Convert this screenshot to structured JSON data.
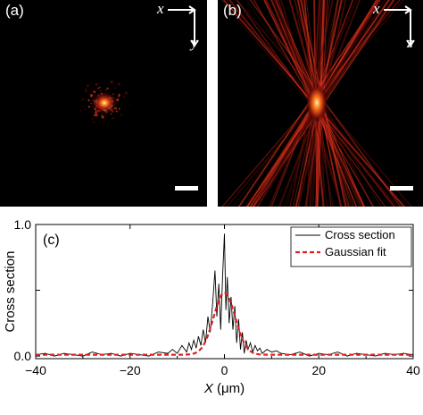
{
  "panel_a": {
    "tag": "(a)",
    "axis_h": "x",
    "axis_v": "y"
  },
  "panel_b": {
    "tag": "(b)",
    "axis_h": "x",
    "axis_v": "z"
  },
  "colors": {
    "background": "#000000",
    "speckle_hot": "#ffe9b0",
    "speckle_mid": "#e0301a",
    "speckle_dim": "#6a0e08",
    "cross_section_line": "#000000",
    "gaussian_line": "#e02020"
  },
  "chart_data": {
    "type": "line",
    "panel_label": "(c)",
    "xlabel": "X (μm)",
    "ylabel": "Cross section",
    "xlim": [
      -40,
      40
    ],
    "ylim": [
      -0.02,
      1.0
    ],
    "xticks": [
      -40,
      -20,
      0,
      20,
      40
    ],
    "yticks": [
      0.0,
      0.5,
      1.0
    ],
    "ytick_labels": [
      "0.0",
      "",
      "1.0"
    ],
    "legend_placement": "top-right",
    "series": [
      {
        "name": "Cross section",
        "style": "solid",
        "x": [
          -40,
          -38,
          -36,
          -34,
          -32,
          -30,
          -28,
          -26,
          -24,
          -22,
          -20,
          -18,
          -16,
          -14,
          -12,
          -11,
          -10,
          -9,
          -8,
          -7.5,
          -7,
          -6.5,
          -6,
          -5.5,
          -5,
          -4.5,
          -4,
          -3.5,
          -3,
          -2.5,
          -2,
          -1.6,
          -1.2,
          -0.8,
          -0.4,
          0,
          0.3,
          0.6,
          1,
          1.4,
          1.8,
          2.2,
          2.6,
          3,
          3.4,
          3.8,
          4.2,
          4.6,
          5,
          5.5,
          6,
          6.5,
          7,
          7.5,
          8,
          9,
          10,
          11,
          12,
          14,
          16,
          18,
          20,
          22,
          24,
          26,
          28,
          30,
          32,
          34,
          36,
          38,
          40
        ],
        "y": [
          0.01,
          0.02,
          0.0,
          0.02,
          0.01,
          0.0,
          0.03,
          0.01,
          0.02,
          0.0,
          0.02,
          0.01,
          0.0,
          0.03,
          0.02,
          0.05,
          0.02,
          0.08,
          0.03,
          0.1,
          0.05,
          0.12,
          0.06,
          0.15,
          0.08,
          0.2,
          0.1,
          0.3,
          0.18,
          0.4,
          0.65,
          0.3,
          0.55,
          0.2,
          0.6,
          0.93,
          0.35,
          0.6,
          0.25,
          0.45,
          0.2,
          0.38,
          0.1,
          0.28,
          0.05,
          0.18,
          0.02,
          0.12,
          0.05,
          0.1,
          0.03,
          0.08,
          0.04,
          0.06,
          0.02,
          0.05,
          0.03,
          0.04,
          0.02,
          0.01,
          0.03,
          0.0,
          0.02,
          0.01,
          0.03,
          0.0,
          0.02,
          0.01,
          0.0,
          0.02,
          0.01,
          0.02,
          0.01
        ]
      },
      {
        "name": "Gaussian fit",
        "style": "dashed",
        "gaussian": {
          "amplitude": 0.47,
          "center": 0,
          "sigma": 2.3,
          "offset": 0.01
        }
      }
    ]
  }
}
